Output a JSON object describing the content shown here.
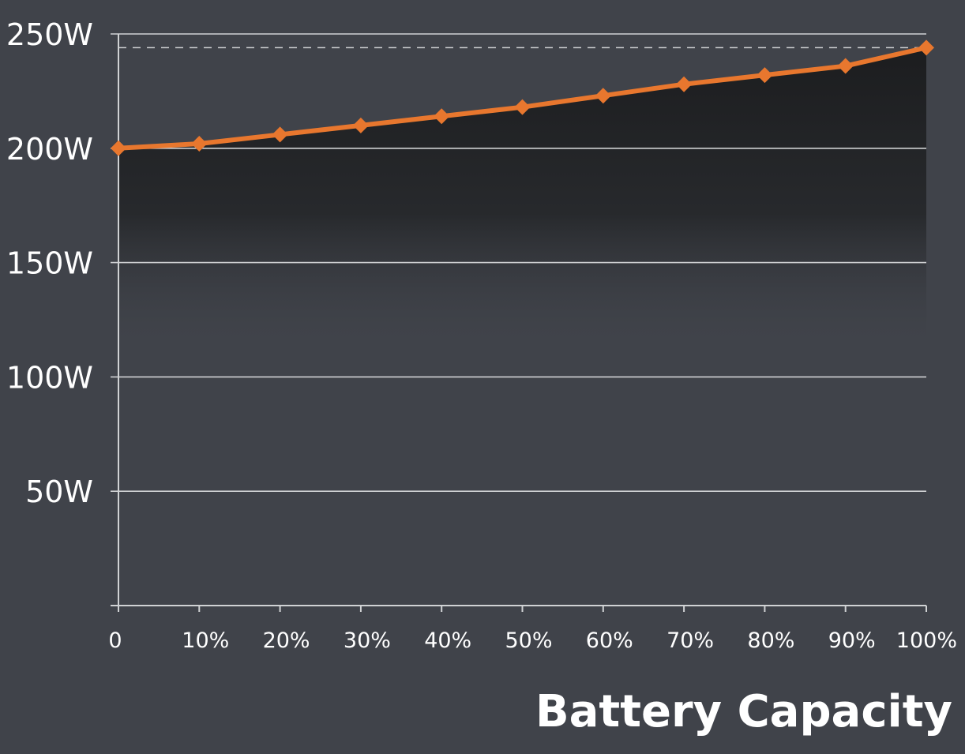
{
  "chart_data": {
    "type": "area",
    "title": "",
    "xlabel": "Battery Capacity",
    "ylabel": "",
    "x_categories": [
      "0",
      "10%",
      "20%",
      "30%",
      "40%",
      "50%",
      "60%",
      "70%",
      "80%",
      "90%",
      "100%"
    ],
    "y_tick_values": [
      50,
      100,
      150,
      200,
      250
    ],
    "y_tick_labels": [
      "50W",
      "100W",
      "150W",
      "200W",
      "250W"
    ],
    "ylim": [
      0,
      250
    ],
    "series": [
      {
        "values": [
          200,
          202,
          206,
          210,
          214,
          218,
          223,
          228,
          232,
          236,
          244
        ]
      }
    ],
    "reference_line": {
      "value": 244,
      "style": "dashed"
    },
    "grid": true,
    "legend": "none",
    "colors": {
      "background": "#40434a",
      "line": "#e8772e",
      "area": "#1f2022",
      "grid": "#d0d2d4",
      "text": "#ffffff"
    }
  }
}
